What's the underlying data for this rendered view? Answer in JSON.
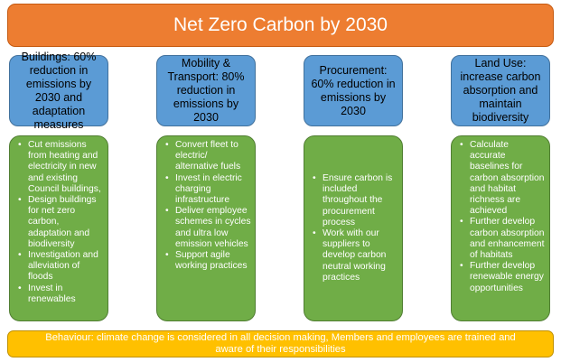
{
  "title": "Net Zero Carbon by 2030",
  "columns": [
    {
      "heading": "Buildings: 60% reduction in emissions by 2030 and adaptation measures",
      "actions": [
        "Cut emissions from heating and electricity in new and existing Council buildings,",
        "Design buildings for net zero carbon, adaptation and biodiversity",
        "Investigation and alleviation of floods",
        "Invest in renewables"
      ]
    },
    {
      "heading": "Mobility & Transport: 80% reduction in emissions by 2030",
      "actions": [
        "Convert fleet to electric/ alternative fuels",
        "Invest in electric charging infrastructure",
        "Deliver employee schemes in cycles and ultra low emission vehicles",
        "Support agile working practices"
      ]
    },
    {
      "heading": "Procurement: 60% reduction in emissions by 2030",
      "actions": [
        "Ensure carbon is included throughout the procurement process",
        "Work with our suppliers to develop carbon neutral working practices"
      ]
    },
    {
      "heading": "Land Use: increase carbon absorption and maintain biodiversity",
      "actions": [
        "Calculate accurate baselines for carbon absorption and habitat richness are achieved",
        "Further develop carbon absorption and enhancement of habitats",
        "Further develop renewable energy opportunities"
      ]
    }
  ],
  "behaviour": "Behaviour: climate change is considered in all decision making, Members and employees are trained and aware of their responsibilities",
  "colors": {
    "title": "#ed7d31",
    "headings": "#5b9bd5",
    "actions": "#70ad47",
    "behaviour": "#ffc000"
  }
}
